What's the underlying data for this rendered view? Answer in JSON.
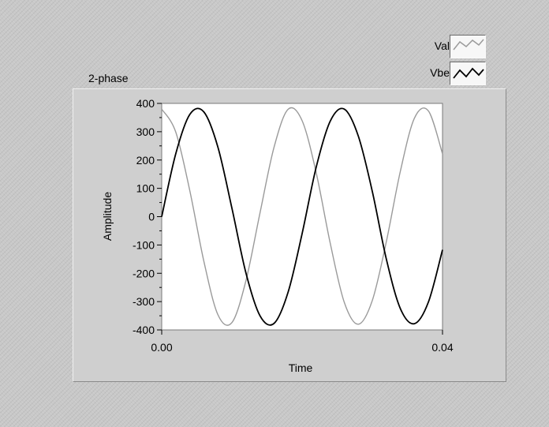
{
  "chart_data": {
    "type": "line",
    "title": "2-phase",
    "xlabel": "Time",
    "ylabel": "Amplitude",
    "xlim": [
      0,
      0.04
    ],
    "ylim": [
      -400,
      400
    ],
    "x_ticks": [
      "0.00",
      "0.04"
    ],
    "y_ticks": [
      "400",
      "300",
      "200",
      "100",
      "0",
      "-100",
      "-200",
      "-300",
      "-400"
    ],
    "grid": false,
    "legend_position": "top-right",
    "series": [
      {
        "name": "Val",
        "color": "#9a9a9a",
        "x": [
          0,
          0.002,
          0.004,
          0.006,
          0.008,
          0.01,
          0.012,
          0.014,
          0.016,
          0.018,
          0.02,
          0.022,
          0.024,
          0.026,
          0.028,
          0.03,
          0.032,
          0.034,
          0.036,
          0.038,
          0.04
        ],
        "values": [
          380,
          299,
          92,
          -157,
          -346,
          -374,
          -226,
          13,
          245,
          379,
          339,
          156,
          -93,
          -302,
          -380,
          -296,
          -88,
          161,
          348,
          373,
          222
        ]
      },
      {
        "name": "Vbe",
        "color": "#000000",
        "x": [
          0,
          0.002,
          0.004,
          0.006,
          0.008,
          0.01,
          0.012,
          0.014,
          0.016,
          0.018,
          0.02,
          0.022,
          0.024,
          0.026,
          0.028,
          0.03,
          0.032,
          0.034,
          0.036,
          0.038,
          0.04
        ],
        "values": [
          0,
          222,
          361,
          370,
          246,
          30,
          -199,
          -350,
          -377,
          -267,
          -60,
          174,
          337,
          380,
          285,
          89,
          -150,
          -325,
          -378,
          -301,
          -117
        ]
      }
    ]
  }
}
